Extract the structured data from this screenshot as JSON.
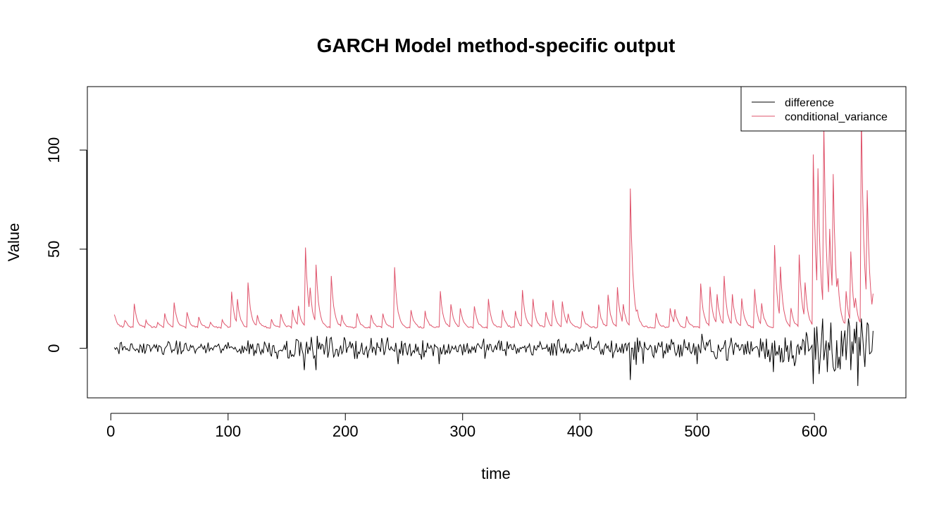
{
  "chart_data": {
    "type": "line",
    "title": "GARCH Model method-specific output",
    "xlabel": "time",
    "ylabel": "Value",
    "xlim": [
      -20,
      678
    ],
    "ylim": [
      -25,
      132
    ],
    "xticks": [
      0,
      100,
      200,
      300,
      400,
      500,
      600
    ],
    "yticks": [
      0,
      50,
      100
    ],
    "grid": false,
    "legend_position": "top-right",
    "x": {
      "start": 3,
      "end": 650,
      "step": 1
    },
    "series": [
      {
        "name": "difference",
        "color": "#000000",
        "baseline": 0,
        "amp_profile": [
          [
            0,
            3
          ],
          [
            100,
            3
          ],
          [
            165,
            6
          ],
          [
            180,
            5
          ],
          [
            240,
            5
          ],
          [
            300,
            4
          ],
          [
            400,
            4
          ],
          [
            430,
            5
          ],
          [
            445,
            9
          ],
          [
            460,
            4
          ],
          [
            500,
            6
          ],
          [
            550,
            5
          ],
          [
            565,
            8
          ],
          [
            590,
            9
          ],
          [
            600,
            14
          ],
          [
            615,
            12
          ],
          [
            640,
            15
          ],
          [
            650,
            8
          ]
        ],
        "extremes": [
          [
            165,
            -11
          ],
          [
            175,
            -11
          ],
          [
            245,
            -8
          ],
          [
            280,
            -8
          ],
          [
            443,
            -16
          ],
          [
            500,
            -8
          ],
          [
            565,
            -12
          ],
          [
            599,
            -18
          ],
          [
            602,
            11
          ],
          [
            604,
            -13
          ],
          [
            607,
            15
          ],
          [
            611,
            -12
          ],
          [
            614,
            13
          ],
          [
            620,
            -10
          ],
          [
            629,
            15
          ],
          [
            631,
            -11
          ],
          [
            637,
            -19
          ],
          [
            640,
            15
          ],
          [
            645,
            13
          ]
        ]
      },
      {
        "name": "conditional_variance",
        "color": "#DF536B",
        "baseline": 10,
        "peaks": [
          [
            3,
            17
          ],
          [
            12,
            14
          ],
          [
            20,
            22
          ],
          [
            30,
            14
          ],
          [
            40,
            13
          ],
          [
            46,
            17
          ],
          [
            54,
            23
          ],
          [
            65,
            18
          ],
          [
            75,
            15
          ],
          [
            85,
            13
          ],
          [
            95,
            14
          ],
          [
            103,
            28
          ],
          [
            108,
            24
          ],
          [
            117,
            33
          ],
          [
            125,
            16
          ],
          [
            137,
            14
          ],
          [
            145,
            17
          ],
          [
            155,
            19
          ],
          [
            160,
            21
          ],
          [
            166,
            50
          ],
          [
            170,
            30
          ],
          [
            175,
            42
          ],
          [
            188,
            36
          ],
          [
            197,
            16
          ],
          [
            210,
            17
          ],
          [
            222,
            16
          ],
          [
            232,
            17
          ],
          [
            242,
            40
          ],
          [
            256,
            19
          ],
          [
            268,
            18
          ],
          [
            281,
            28
          ],
          [
            290,
            22
          ],
          [
            298,
            20
          ],
          [
            310,
            21
          ],
          [
            322,
            24
          ],
          [
            334,
            19
          ],
          [
            345,
            18
          ],
          [
            351,
            29
          ],
          [
            360,
            24
          ],
          [
            371,
            18
          ],
          [
            377,
            24
          ],
          [
            385,
            23
          ],
          [
            390,
            17
          ],
          [
            402,
            18
          ],
          [
            416,
            22
          ],
          [
            424,
            27
          ],
          [
            432,
            30
          ],
          [
            437,
            22
          ],
          [
            443,
            80
          ],
          [
            449,
            19
          ],
          [
            465,
            17
          ],
          [
            477,
            20
          ],
          [
            481,
            19
          ],
          [
            491,
            16
          ],
          [
            503,
            32
          ],
          [
            511,
            31
          ],
          [
            517,
            27
          ],
          [
            523,
            36
          ],
          [
            530,
            27
          ],
          [
            538,
            25
          ],
          [
            549,
            29
          ],
          [
            555,
            22
          ],
          [
            566,
            52
          ],
          [
            571,
            41
          ],
          [
            580,
            20
          ],
          [
            587,
            47
          ],
          [
            592,
            33
          ],
          [
            599,
            97
          ],
          [
            603,
            90
          ],
          [
            608,
            113
          ],
          [
            613,
            60
          ],
          [
            616,
            87
          ],
          [
            620,
            35
          ],
          [
            627,
            28
          ],
          [
            631,
            48
          ],
          [
            635,
            25
          ],
          [
            640,
            118
          ],
          [
            645,
            79
          ],
          [
            650,
            27
          ]
        ]
      }
    ]
  }
}
